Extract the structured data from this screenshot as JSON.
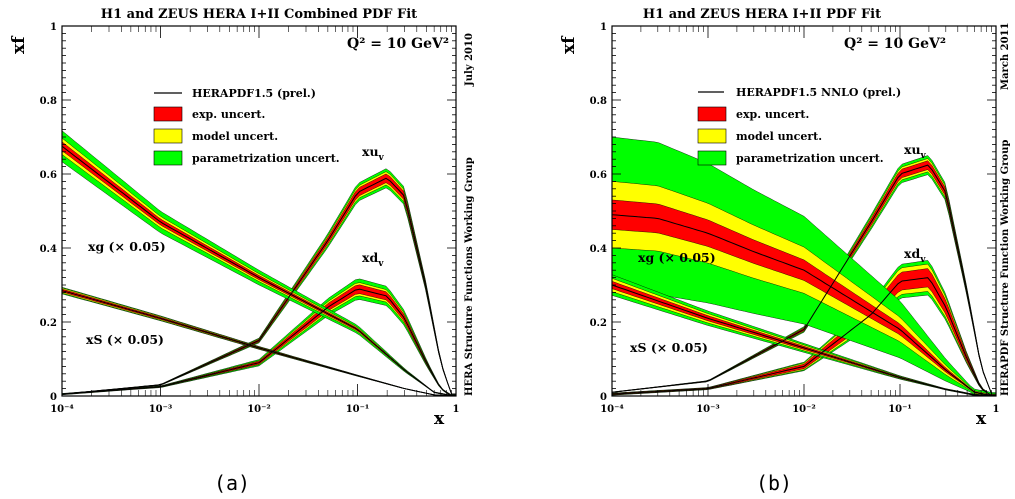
{
  "chart_data": [
    {
      "type": "area",
      "title": "H1 and ZEUS HERA I+II Combined PDF Fit",
      "subtitle": "Q² = 10 GeV²",
      "ylabel": "xf",
      "xlabel": "x",
      "xscale": "log",
      "xlim": [
        0.0001,
        1
      ],
      "ylim": [
        0,
        1
      ],
      "y_ticks": [
        "0.2",
        "0.4",
        "0.6",
        "0.8",
        "1"
      ],
      "x_ticks": [
        "10⁻⁴",
        "10⁻³",
        "10⁻²",
        "10⁻¹",
        "1"
      ],
      "side_label_top": "July 2010",
      "side_label_bottom": "HERA Structure Functions Working Group",
      "caption": "(a)",
      "legend": {
        "position": "top-center",
        "entries": [
          {
            "label": "HERAPDF1.5 (prel.)",
            "kind": "line",
            "color": "#000000"
          },
          {
            "label": "exp. uncert.",
            "kind": "box",
            "color": "#ff0000"
          },
          {
            "label": "model uncert.",
            "kind": "box",
            "color": "#ffff00"
          },
          {
            "label": "parametrization uncert.",
            "kind": "box",
            "color": "#00ff00"
          }
        ]
      },
      "series": [
        {
          "name": "xuv",
          "label_main": "xu",
          "label_sub": "v",
          "x": [
            0.0001,
            0.001,
            0.01,
            0.05,
            0.1,
            0.2,
            0.3,
            0.5,
            0.7,
            0.9
          ],
          "y": [
            0.005,
            0.03,
            0.15,
            0.42,
            0.55,
            0.59,
            0.54,
            0.29,
            0.09,
            0.005
          ],
          "exp": 0.012,
          "model": 0.006,
          "param": 0.008
        },
        {
          "name": "xdv",
          "label_main": "xd",
          "label_sub": "v",
          "x": [
            0.0001,
            0.001,
            0.01,
            0.05,
            0.1,
            0.2,
            0.3,
            0.5,
            0.7,
            0.9
          ],
          "y": [
            0.005,
            0.025,
            0.09,
            0.24,
            0.29,
            0.27,
            0.21,
            0.09,
            0.02,
            0.001
          ],
          "exp": 0.012,
          "model": 0.006,
          "param": 0.01
        },
        {
          "name": "xg",
          "label_text": "xg (× 0.05)",
          "x": [
            0.0001,
            0.001,
            0.01,
            0.1,
            0.3,
            0.6,
            0.9
          ],
          "y": [
            0.675,
            0.47,
            0.32,
            0.18,
            0.07,
            0.01,
            0.001
          ],
          "exp": 0.012,
          "model": 0.01,
          "param": 0.02
        },
        {
          "name": "xS",
          "label_text": "xS (× 0.05)",
          "x": [
            0.0001,
            0.001,
            0.01,
            0.1,
            0.3,
            0.6,
            0.9
          ],
          "y": [
            0.285,
            0.21,
            0.13,
            0.055,
            0.02,
            0.003,
            0.0005
          ],
          "exp": 0.004,
          "model": 0.003,
          "param": 0.002
        }
      ]
    },
    {
      "type": "area",
      "title": "H1 and ZEUS HERA I+II PDF Fit",
      "subtitle": "Q² = 10 GeV²",
      "ylabel": "xf",
      "xlabel": "x",
      "xscale": "log",
      "xlim": [
        0.0001,
        1
      ],
      "ylim": [
        0,
        1
      ],
      "y_ticks": [
        "0.2",
        "0.4",
        "0.6",
        "0.8",
        "1"
      ],
      "x_ticks": [
        "10⁻⁴",
        "10⁻³",
        "10⁻²",
        "10⁻¹",
        "1"
      ],
      "side_label_top": "March 2011",
      "side_label_bottom": "HERAPDF Structure Function Working Group",
      "caption": "(b)",
      "legend": {
        "position": "top-center",
        "entries": [
          {
            "label": "HERAPDF1.5 NNLO (prel.)",
            "kind": "line",
            "color": "#000000"
          },
          {
            "label": "exp. uncert.",
            "kind": "box",
            "color": "#ff0000"
          },
          {
            "label": "model uncert.",
            "kind": "box",
            "color": "#ffff00"
          },
          {
            "label": "parametrization uncert.",
            "kind": "box",
            "color": "#00ff00"
          }
        ]
      },
      "series": [
        {
          "name": "xuv",
          "label_main": "xu",
          "label_sub": "v",
          "x": [
            0.0001,
            0.001,
            0.01,
            0.05,
            0.1,
            0.2,
            0.3,
            0.5,
            0.7,
            0.9
          ],
          "y": [
            0.01,
            0.04,
            0.18,
            0.47,
            0.6,
            0.625,
            0.55,
            0.28,
            0.08,
            0.005
          ],
          "exp": 0.012,
          "model": 0.006,
          "param": 0.008
        },
        {
          "name": "xdv",
          "label_main": "xd",
          "label_sub": "v",
          "x": [
            0.0001,
            0.001,
            0.01,
            0.05,
            0.1,
            0.2,
            0.3,
            0.5,
            0.7,
            0.9
          ],
          "y": [
            0.005,
            0.02,
            0.08,
            0.22,
            0.31,
            0.32,
            0.24,
            0.1,
            0.02,
            0.001
          ],
          "exp": 0.025,
          "model": 0.012,
          "param": 0.01
        },
        {
          "name": "xg",
          "label_text": "xg (× 0.05)",
          "x": [
            0.0001,
            0.0003,
            0.001,
            0.003,
            0.01,
            0.1,
            0.3,
            0.6,
            0.9
          ],
          "y": [
            0.49,
            0.48,
            0.44,
            0.39,
            0.34,
            0.18,
            0.07,
            0.01,
            0.001
          ],
          "exp": 0.04,
          "model": 0.05,
          "param": 0.12
        },
        {
          "name": "xS",
          "label_text": "xS (× 0.05)",
          "x": [
            0.0001,
            0.001,
            0.01,
            0.1,
            0.3,
            0.6,
            0.9
          ],
          "y": [
            0.3,
            0.21,
            0.13,
            0.05,
            0.018,
            0.003,
            0.0005
          ],
          "exp": 0.01,
          "model": 0.008,
          "param": 0.01
        }
      ]
    }
  ]
}
